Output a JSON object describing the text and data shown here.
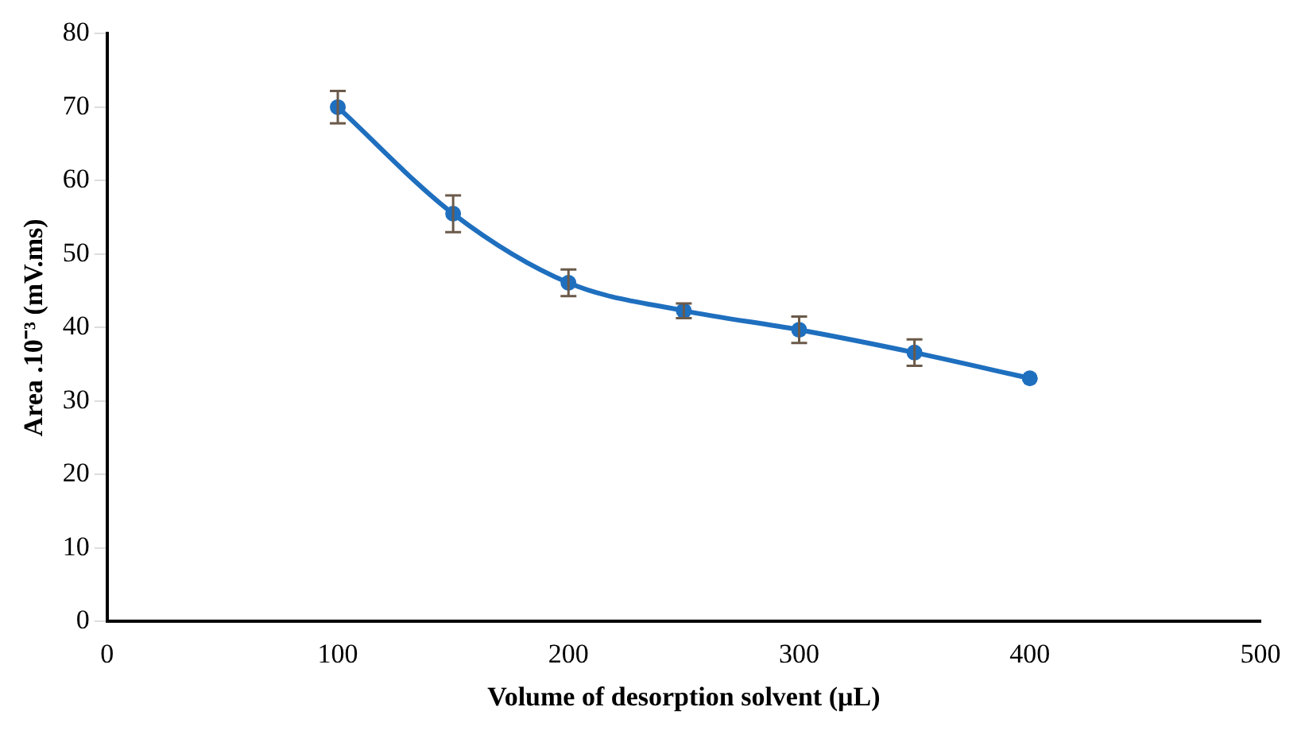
{
  "chart_data": {
    "type": "line",
    "xlabel": "Volume of desorption solvent (µL)",
    "ylabel": "Area .10⁻³ (mV.ms)",
    "x": [
      100,
      150,
      200,
      250,
      300,
      350,
      400
    ],
    "series": [
      {
        "color": "#1f6fbf",
        "values": [
          70.0,
          55.5,
          46.1,
          42.3,
          39.7,
          36.6,
          33.1
        ],
        "errors": [
          2.2,
          2.5,
          1.8,
          1.0,
          1.8,
          1.8,
          null
        ]
      }
    ],
    "xlim": [
      0,
      500
    ],
    "xticks": [
      0,
      100,
      200,
      300,
      400,
      500
    ],
    "ylim": [
      0,
      80
    ],
    "yticks": [
      0,
      10,
      20,
      30,
      40,
      50,
      60,
      70,
      80
    ],
    "grid": false,
    "legend": false,
    "marker": "circle",
    "line_style": "solid"
  }
}
